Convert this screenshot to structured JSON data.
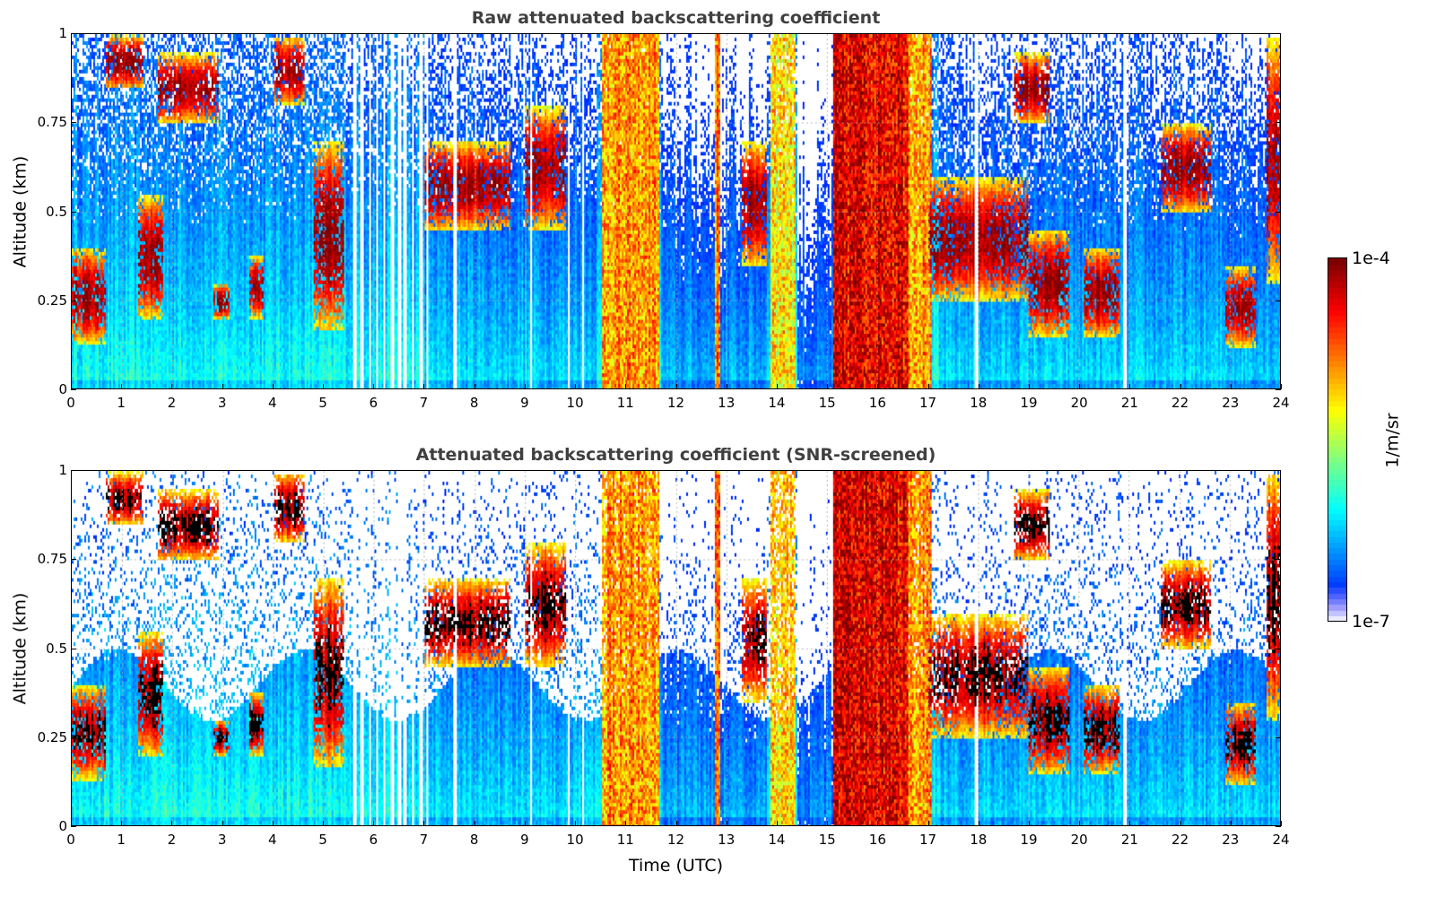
{
  "chart_data": [
    {
      "type": "heatmap",
      "title": "Raw attenuated backscattering coefficient",
      "xlabel": "",
      "ylabel": "Altitude (km)",
      "xlim": [
        0,
        24
      ],
      "ylim": [
        0,
        1
      ],
      "xticks": [
        "0",
        "1",
        "2",
        "3",
        "4",
        "5",
        "6",
        "7",
        "8",
        "9",
        "10",
        "11",
        "12",
        "13",
        "14",
        "15",
        "16",
        "17",
        "18",
        "19",
        "20",
        "21",
        "22",
        "23",
        "24"
      ],
      "yticks": [
        "0",
        "0.25",
        "0.5",
        "0.75",
        "1"
      ],
      "grid": true,
      "screened": false
    },
    {
      "type": "heatmap",
      "title": "Attenuated backscattering coefficient (SNR-screened)",
      "xlabel": "Time (UTC)",
      "ylabel": "Altitude (km)",
      "xlim": [
        0,
        24
      ],
      "ylim": [
        0,
        1
      ],
      "xticks": [
        "0",
        "1",
        "2",
        "3",
        "4",
        "5",
        "6",
        "7",
        "8",
        "9",
        "10",
        "11",
        "12",
        "13",
        "14",
        "15",
        "16",
        "17",
        "18",
        "19",
        "20",
        "21",
        "22",
        "23",
        "24"
      ],
      "yticks": [
        "0",
        "0.25",
        "0.5",
        "0.75",
        "1"
      ],
      "grid": true,
      "screened": true
    }
  ],
  "colorbar": {
    "label": "1/m/sr",
    "min_label": "1e-7",
    "max_label": "1e-4",
    "scale": "log",
    "colormap": "jet"
  },
  "features": {
    "cloud_layers": [
      {
        "t0": 0.0,
        "t1": 0.65,
        "base_km": 0.13,
        "top_km": 0.4
      },
      {
        "t0": 0.65,
        "t1": 1.4,
        "base_km": 0.85,
        "top_km": 1.0
      },
      {
        "t0": 1.3,
        "t1": 1.8,
        "base_km": 0.2,
        "top_km": 0.55
      },
      {
        "t0": 1.7,
        "t1": 2.9,
        "base_km": 0.75,
        "top_km": 0.95
      },
      {
        "t0": 2.8,
        "t1": 3.1,
        "base_km": 0.2,
        "top_km": 0.3
      },
      {
        "t0": 3.5,
        "t1": 3.8,
        "base_km": 0.2,
        "top_km": 0.38
      },
      {
        "t0": 4.0,
        "t1": 4.6,
        "base_km": 0.8,
        "top_km": 1.0
      },
      {
        "t0": 4.8,
        "t1": 5.4,
        "base_km": 0.17,
        "top_km": 0.7
      },
      {
        "t0": 7.0,
        "t1": 8.7,
        "base_km": 0.45,
        "top_km": 0.7
      },
      {
        "t0": 9.0,
        "t1": 9.8,
        "base_km": 0.45,
        "top_km": 0.8
      },
      {
        "t0": 13.3,
        "t1": 13.8,
        "base_km": 0.35,
        "top_km": 0.7
      },
      {
        "t0": 17.0,
        "t1": 19.0,
        "base_km": 0.25,
        "top_km": 0.6
      },
      {
        "t0": 18.7,
        "t1": 19.4,
        "base_km": 0.75,
        "top_km": 0.95
      },
      {
        "t0": 19.0,
        "t1": 19.8,
        "base_km": 0.15,
        "top_km": 0.45
      },
      {
        "t0": 20.1,
        "t1": 20.8,
        "base_km": 0.15,
        "top_km": 0.4
      },
      {
        "t0": 21.6,
        "t1": 22.6,
        "base_km": 0.5,
        "top_km": 0.75
      },
      {
        "t0": 22.9,
        "t1": 23.5,
        "base_km": 0.12,
        "top_km": 0.35
      },
      {
        "t0": 23.7,
        "t1": 24.0,
        "base_km": 0.3,
        "top_km": 1.0
      }
    ],
    "full_column_events": [
      {
        "t0": 10.5,
        "t1": 11.65,
        "level": 0.72
      },
      {
        "t0": 12.75,
        "t1": 12.85,
        "level": 0.75
      },
      {
        "t0": 13.85,
        "t1": 14.35,
        "level": 0.65
      },
      {
        "t0": 15.1,
        "t1": 16.6,
        "level": 0.9
      },
      {
        "t0": 16.6,
        "t1": 17.05,
        "level": 0.72
      }
    ],
    "data_gaps_utc": [
      5.6,
      5.75,
      5.9,
      6.05,
      6.2,
      6.35,
      6.5,
      6.6,
      6.75,
      6.92,
      7.05,
      7.6,
      9.1,
      9.85,
      10.15,
      17.95,
      20.9
    ]
  }
}
